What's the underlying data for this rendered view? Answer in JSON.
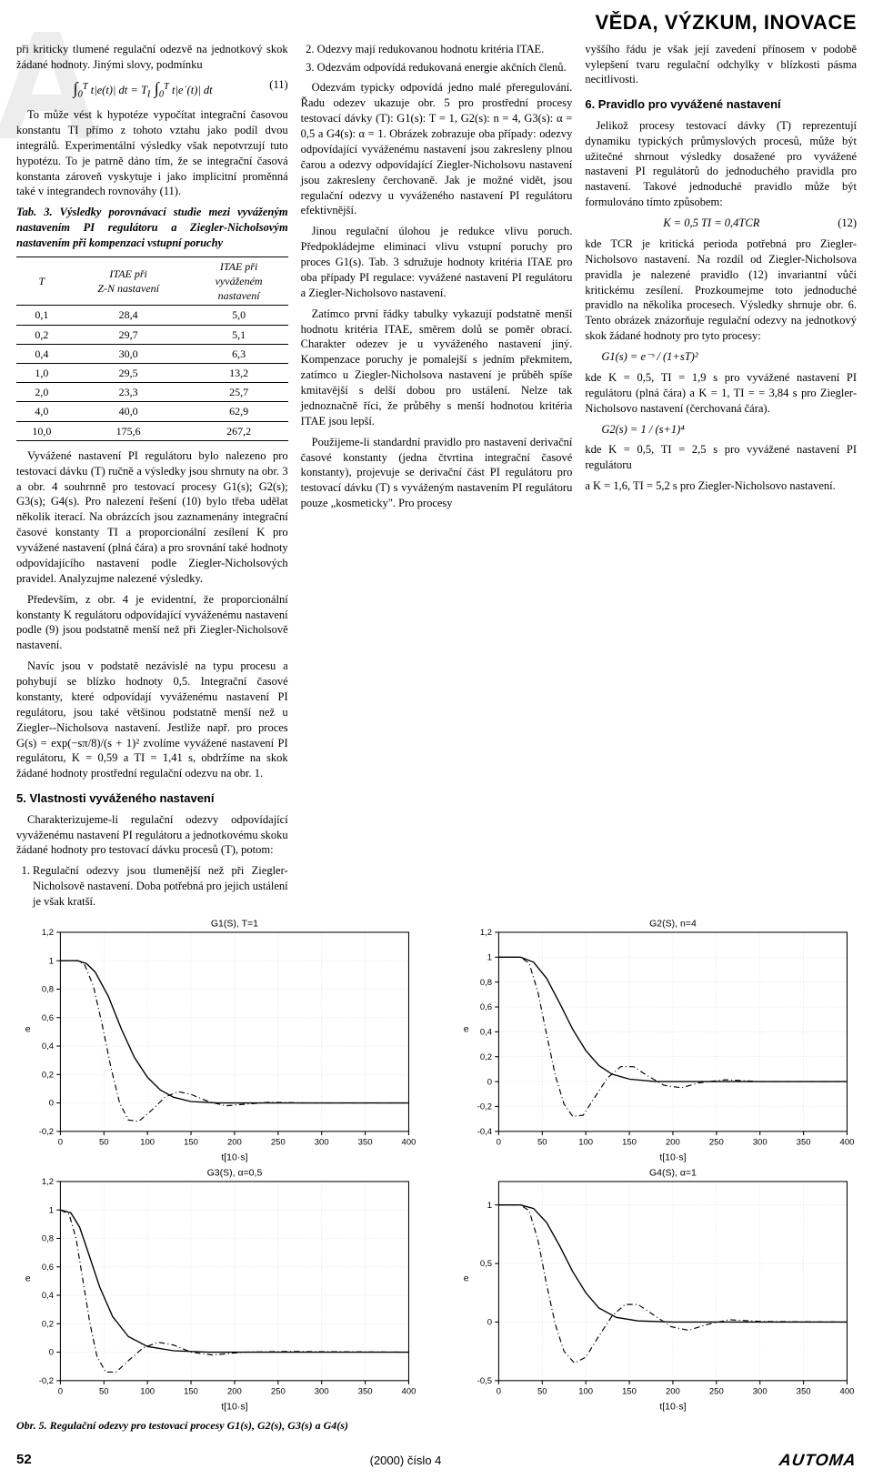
{
  "header": {
    "section_title": "VĚDA, VÝZKUM, INOVACE",
    "watermark": "A"
  },
  "col1": {
    "p1": "při kriticky tlumené regulační odezvě na jednotkový skok žádané hodnoty. Jinými slovy, podmínku",
    "eq11_lhs": "∫",
    "eq11_sub1": "0",
    "eq11_sup1": "T",
    "eq11_mid1": " t|e(t)| dt = T",
    "eq11_Ti": "I",
    "eq11_int2": " ∫",
    "eq11_sub2": "0",
    "eq11_sup2": "T",
    "eq11_mid2": " t|e˙(t)| dt",
    "eq11_num": "(11)",
    "p2": "To může vést k hypotéze vypočítat integrační časovou konstantu TI přímo z tohoto vztahu jako podíl dvou integrálů. Experimentální výsledky však nepotvrzují tuto hypotézu. To je patrně dáno tím, že se integrační časová konstanta zároveň vyskytuje i jako implicitní proměnná také v integrandech rovnováhy (11).",
    "tab3_title": "Tab. 3. Výsledky porovnávací studie mezi vyváženým nastavením PI regulátoru a Ziegler-Nicholsovým nastavením při kompenzaci vstupní poruchy",
    "tab3_headers": [
      "T",
      "ITAE při\nZ-N nastavení",
      "ITAE při\nvyváženém\nnastavení"
    ],
    "tab3_rows": [
      [
        "0,1",
        "28,4",
        "5,0"
      ],
      [
        "0,2",
        "29,7",
        "5,1"
      ],
      [
        "0,4",
        "30,0",
        "6,3"
      ],
      [
        "1,0",
        "29,5",
        "13,2"
      ],
      [
        "2,0",
        "23,3",
        "25,7"
      ],
      [
        "4,0",
        "40,0",
        "62,9"
      ],
      [
        "10,0",
        "175,6",
        "267,2"
      ]
    ],
    "p3": "Vyvážené nastavení PI regulátoru bylo nalezeno pro testovací dávku (T) ručně a výsledky jsou shrnuty na obr. 3 a obr. 4 souhrnně pro testovací procesy G1(s); G2(s); G3(s); G4(s). Pro nalezení řešení (10) bylo třeba udělat několik iterací. Na obrázcích jsou zaznamenány integrační časové konstanty TI a proporcionální zesílení K pro vyvážené nastavení (plná čára) a pro srovnání také hodnoty odpovídajícího nastavení podle Ziegler-Nicholsových pravidel. Analyzujme nalezené výsledky.",
    "p4": "Především, z obr. 4 je evidentní, že proporcionální konstanty K regulátoru odpovídající vyváženému nastavení podle (9) jsou podstatně menší než při Ziegler-Nicholsově nastavení.",
    "p5": "Navíc jsou v podstatě nezávislé na typu procesu a pohybují se blízko hodnoty 0,5. Integrační časové konstanty, které odpovídají vyváženému nastavení PI regulátoru, jsou také většinou podstatně menší než u Ziegler--Nicholsova nastavení. Jestliže např. pro proces G(s) = exp(−sπ/8)/(s + 1)² zvolíme vyvážené nastavení PI regulátoru, K = 0,59 a TI = 1,41 s, obdržíme na skok žádané hodnoty prostřední regulační odezvu na obr. 1.",
    "h5": "5. Vlastnosti vyváženého nastavení",
    "p6": "Charakterizujeme-li regulační odezvy odpovídající vyváženému nastavení PI regulátoru a jednotkovému skoku žádané hodnoty pro testovací dávku procesů (T), potom:",
    "li1": "Regulační odezvy jsou tlumenější než při Ziegler-Nicholsově nastavení. Doba potřebná pro jejich ustálení je však kratší."
  },
  "col2": {
    "li2": "Odezvy mají redukovanou hodnotu kritéria ITAE.",
    "li3": "Odezvám odpovídá redukovaná energie akčních členů.",
    "p1": "Odezvám typicky odpovídá jedno malé přeregulování. Řadu odezev ukazuje obr. 5 pro prostřední procesy testovací dávky (T): G1(s): T = 1, G2(s): n = 4, G3(s): α = 0,5 a G4(s): α = 1. Obrázek zobrazuje oba případy: odezvy odpovídající vyváženému nastavení jsou zakresleny plnou čarou a odezvy odpovídající Ziegler-Nicholsovu nastavení jsou zakresleny čerchovaně. Jak je možné vidět, jsou regulační odezvy u vyváženého nastavení PI regulátoru efektivnější.",
    "p2": "Jinou regulační úlohou je redukce vlivu poruch. Předpokládejme eliminaci vlivu vstupní poruchy pro proces G1(s). Tab. 3 sdružuje hodnoty kritéria ITAE pro oba případy PI regulace: vyvážené nastavení PI regulátoru a Ziegler-Nicholsovo nastavení.",
    "p3": "Zatímco první řádky tabulky vykazují podstatně menší hodnotu kritéria ITAE, směrem dolů se poměr obrací. Charakter odezev je u vyváženého nastavení jiný. Kompenzace poruchy je pomalejší s jedním překmitem, zatímco u Ziegler-Nicholsova nastavení je průběh spíše kmitavější s delší dobou pro ustálení. Nelze tak jednoznačně říci, že průběhy s menší hodnotou kritéria ITAE jsou lepší.",
    "p4": "Použijeme-li standardní pravidlo pro nastavení derivační časové konstanty (jedna čtvrtina integrační časové konstanty), projevuje se derivační část PI regulátoru pro testovací dávku (T) s vyváženým nastavením PI regulátoru pouze „kosmeticky\". Pro procesy"
  },
  "col3": {
    "p1": "vyššího řádu je však její zavedení přínosem v podobě vylepšení tvaru regulační odchylky v blízkosti pásma necitlivosti.",
    "h6": "6. Pravidlo pro vyvážené nastavení",
    "p2": "Jelikož procesy testovací dávky (T) reprezentují dynamiku typických průmyslových procesů, může být užitečné shrnout výsledky dosažené pro vyvážené nastavení PI regulátorů do jednoduchého pravidla pro nastavení. Takové jednoduché pravidlo může být formulováno tímto způsobem:",
    "eq12": "K = 0,5      TI = 0,4TCR",
    "eq12_num": "(12)",
    "p3": "kde TCR je kritická perioda potřebná pro Ziegler-Nicholsovo nastavení. Na rozdíl od Ziegler-Nicholsova pravidla je nalezené pravidlo (12) invariantní vůči kritickému zesílení. Prozkoumejme toto jednoduché pravidlo na několika procesech. Výsledky shrnuje obr. 6. Tento obrázek znázorňuje regulační odezvy na jednotkový skok žádané hodnoty pro tyto procesy:",
    "f1": "G1(s) = e⁻ˢ / (1+sT)²",
    "p4": "kde K = 0,5, TI = 1,9 s pro vyvážené nastavení PI regulátoru (plná čára) a K = 1, TI = = 3,84 s pro Ziegler-Nicholsovo nastavení (čerchovaná čára).",
    "f2": "G2(s) = 1 / (s+1)⁴",
    "p5": "kde K = 0,5, TI = 2,5 s pro vyvážené nastavení PI regulátoru",
    "p6": "a K = 1,6, TI = 5,2 s pro Ziegler-Nicholsovo nastavení."
  },
  "charts": {
    "common": {
      "bg": "#ffffff",
      "axis_color": "#000000",
      "grid_color": "#d8d8d8",
      "line_solid_color": "#000000",
      "line_dash_color": "#000000",
      "dash_pattern": "6,3,1,3",
      "font_size": 9,
      "xlabel": "t[10·s]",
      "ylabel": "e",
      "xlim": [
        0,
        400
      ],
      "xticks": [
        0,
        50,
        100,
        150,
        200,
        250,
        300,
        350,
        400
      ]
    },
    "g1": {
      "title": "G1(S), T=1",
      "ylim": [
        -0.2,
        1.2
      ],
      "yticks": [
        -0.2,
        0,
        0.2,
        0.4,
        0.6,
        0.8,
        1,
        1.2
      ],
      "solid": [
        [
          0,
          1
        ],
        [
          20,
          1
        ],
        [
          30,
          0.98
        ],
        [
          40,
          0.92
        ],
        [
          55,
          0.75
        ],
        [
          70,
          0.52
        ],
        [
          85,
          0.32
        ],
        [
          100,
          0.18
        ],
        [
          115,
          0.09
        ],
        [
          130,
          0.04
        ],
        [
          150,
          0.01
        ],
        [
          180,
          0
        ],
        [
          400,
          0
        ]
      ],
      "dash": [
        [
          0,
          1
        ],
        [
          20,
          1
        ],
        [
          28,
          0.97
        ],
        [
          38,
          0.82
        ],
        [
          48,
          0.55
        ],
        [
          58,
          0.25
        ],
        [
          68,
          0.0
        ],
        [
          78,
          -0.12
        ],
        [
          90,
          -0.13
        ],
        [
          105,
          -0.05
        ],
        [
          120,
          0.04
        ],
        [
          135,
          0.08
        ],
        [
          150,
          0.06
        ],
        [
          170,
          0.01
        ],
        [
          190,
          -0.02
        ],
        [
          210,
          -0.01
        ],
        [
          240,
          0.005
        ],
        [
          280,
          0
        ],
        [
          400,
          0
        ]
      ]
    },
    "g2": {
      "title": "G2(S), n=4",
      "ylim": [
        -0.4,
        1.2
      ],
      "yticks": [
        -0.4,
        -0.2,
        0,
        0.2,
        0.4,
        0.6,
        0.8,
        1,
        1.2
      ],
      "solid": [
        [
          0,
          1
        ],
        [
          25,
          1
        ],
        [
          40,
          0.96
        ],
        [
          55,
          0.83
        ],
        [
          70,
          0.63
        ],
        [
          85,
          0.42
        ],
        [
          100,
          0.25
        ],
        [
          115,
          0.13
        ],
        [
          130,
          0.06
        ],
        [
          150,
          0.02
        ],
        [
          180,
          0
        ],
        [
          400,
          0
        ]
      ],
      "dash": [
        [
          0,
          1
        ],
        [
          25,
          1
        ],
        [
          35,
          0.95
        ],
        [
          45,
          0.72
        ],
        [
          55,
          0.38
        ],
        [
          65,
          0.05
        ],
        [
          75,
          -0.18
        ],
        [
          85,
          -0.28
        ],
        [
          97,
          -0.27
        ],
        [
          110,
          -0.13
        ],
        [
          125,
          0.03
        ],
        [
          140,
          0.12
        ],
        [
          155,
          0.12
        ],
        [
          170,
          0.05
        ],
        [
          190,
          -0.03
        ],
        [
          210,
          -0.05
        ],
        [
          230,
          -0.01
        ],
        [
          260,
          0.015
        ],
        [
          300,
          0
        ],
        [
          400,
          0
        ]
      ]
    },
    "g3": {
      "title": "G3(S), α=0,5",
      "ylim": [
        -0.2,
        1.2
      ],
      "yticks": [
        -0.2,
        0,
        0.2,
        0.4,
        0.6,
        0.8,
        1,
        1.2
      ],
      "solid": [
        [
          0,
          1
        ],
        [
          12,
          0.98
        ],
        [
          22,
          0.88
        ],
        [
          32,
          0.7
        ],
        [
          45,
          0.46
        ],
        [
          60,
          0.25
        ],
        [
          78,
          0.11
        ],
        [
          100,
          0.04
        ],
        [
          130,
          0.01
        ],
        [
          170,
          0
        ],
        [
          400,
          0
        ]
      ],
      "dash": [
        [
          0,
          1
        ],
        [
          10,
          0.97
        ],
        [
          18,
          0.8
        ],
        [
          26,
          0.5
        ],
        [
          34,
          0.2
        ],
        [
          42,
          -0.03
        ],
        [
          52,
          -0.14
        ],
        [
          64,
          -0.14
        ],
        [
          78,
          -0.06
        ],
        [
          95,
          0.03
        ],
        [
          112,
          0.07
        ],
        [
          130,
          0.05
        ],
        [
          150,
          0.0
        ],
        [
          175,
          -0.02
        ],
        [
          210,
          0.0
        ],
        [
          260,
          0.005
        ],
        [
          400,
          0
        ]
      ]
    },
    "g4": {
      "title": "G4(S), α=1",
      "ylim": [
        -0.5,
        1.2
      ],
      "yticks": [
        -0.5,
        0,
        0.5,
        1
      ],
      "solid": [
        [
          0,
          1
        ],
        [
          25,
          1
        ],
        [
          40,
          0.97
        ],
        [
          55,
          0.85
        ],
        [
          70,
          0.65
        ],
        [
          85,
          0.43
        ],
        [
          100,
          0.25
        ],
        [
          115,
          0.12
        ],
        [
          135,
          0.04
        ],
        [
          160,
          0.01
        ],
        [
          200,
          0
        ],
        [
          400,
          0
        ]
      ],
      "dash": [
        [
          0,
          1
        ],
        [
          25,
          1
        ],
        [
          35,
          0.95
        ],
        [
          45,
          0.7
        ],
        [
          55,
          0.32
        ],
        [
          65,
          -0.02
        ],
        [
          75,
          -0.25
        ],
        [
          87,
          -0.35
        ],
        [
          100,
          -0.3
        ],
        [
          115,
          -0.12
        ],
        [
          130,
          0.05
        ],
        [
          145,
          0.15
        ],
        [
          160,
          0.15
        ],
        [
          178,
          0.06
        ],
        [
          198,
          -0.04
        ],
        [
          218,
          -0.07
        ],
        [
          240,
          -0.02
        ],
        [
          265,
          0.02
        ],
        [
          300,
          0.005
        ],
        [
          400,
          0
        ]
      ]
    },
    "caption": "Obr. 5. Regulační odezvy pro testovací procesy G1(s), G2(s), G3(s) a G4(s)"
  },
  "footer": {
    "page": "52",
    "issue": "(2000) číslo 4",
    "logo": "AUTOMA"
  }
}
